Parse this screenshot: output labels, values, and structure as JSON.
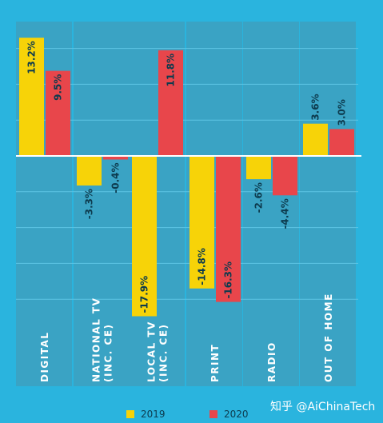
{
  "chart_data": {
    "type": "bar",
    "categories": [
      "DIGITAL",
      "NATIONAL TV\n(INC. CE)",
      "LOCAL TV\n(INC. CE)",
      "PRINT",
      "RADIO",
      "OUT OF HOME"
    ],
    "series": [
      {
        "name": "2019",
        "values": [
          13.2,
          -3.3,
          -17.9,
          -14.8,
          -2.6,
          3.6
        ],
        "labels": [
          "13.2%",
          "-3.3%",
          "-17.9%",
          "-14.8%",
          "-2.6%",
          "3.6%"
        ]
      },
      {
        "name": "2020",
        "values": [
          9.5,
          -0.4,
          11.8,
          -16.3,
          -4.4,
          3.0
        ],
        "labels": [
          "9.5%",
          "-0.4%",
          "11.8%",
          "-16.3%",
          "-4.4%",
          "3.0%"
        ]
      }
    ],
    "ylim": [
      -18,
      13.6
    ],
    "grid": true,
    "legend_position": "bottom"
  },
  "colors": {
    "background": "#2ab4de",
    "column_band": "#3aa3c4",
    "series_2019": "#f7d308",
    "series_2020": "#e8464b",
    "label_text": "#0d3b4e",
    "zero_line": "#ffffff"
  },
  "watermark": "知乎 @AiChinaTech"
}
